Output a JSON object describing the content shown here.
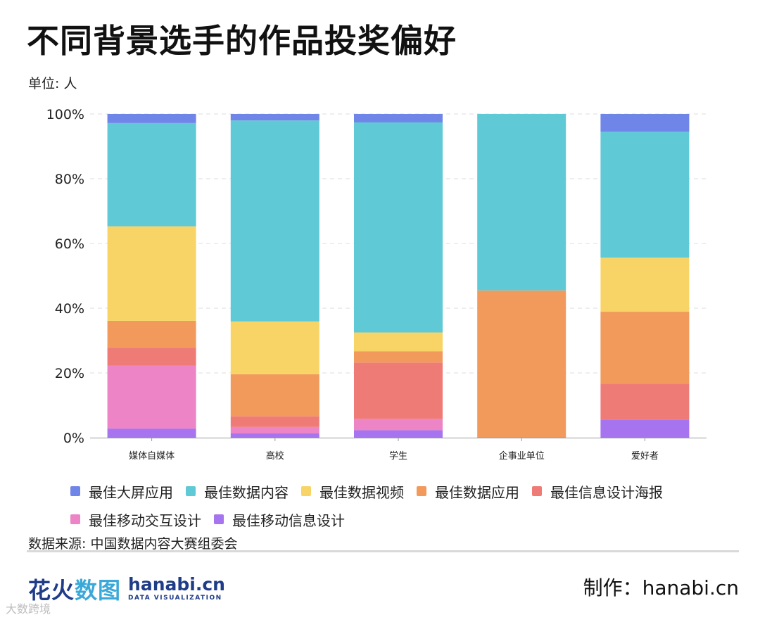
{
  "title": "不同背景选手的作品投奖偏好",
  "unit_label": "单位: 人",
  "source": "数据来源: 中国数据内容大赛组委会",
  "maker": "制作：hanabi.cn",
  "logo": {
    "cn_main": "花火",
    "cn_accent": "数图",
    "en_main": "hanabi.cn",
    "en_sub": "DATA VISUALIZATION"
  },
  "watermark_small": "大数跨境",
  "colors": {
    "最佳大屏应用": "#6f86e8",
    "最佳数据内容": "#5fc9d6",
    "最佳数据视频": "#f8d467",
    "最佳数据应用": "#f19a5c",
    "最佳信息设计海报": "#ef7b77",
    "最佳移动交互设计": "#ec84c6",
    "最佳移动信息设计": "#a774f0"
  },
  "chart_data": {
    "type": "bar",
    "stacked": true,
    "normalized": true,
    "categories": [
      "媒体自媒体",
      "高校",
      "学生",
      "企事业单位",
      "爱好者"
    ],
    "yticks": [
      "0%",
      "20%",
      "40%",
      "60%",
      "80%",
      "100%"
    ],
    "ylim": [
      0,
      100
    ],
    "grid": true,
    "legend_position": "bottom",
    "series": [
      {
        "name": "最佳移动信息设计",
        "values": [
          2.8,
          1.3,
          2.3,
          0,
          5.6
        ]
      },
      {
        "name": "最佳移动交互设计",
        "values": [
          19.4,
          2.0,
          3.5,
          0,
          0
        ]
      },
      {
        "name": "最佳信息设计海报",
        "values": [
          5.6,
          3.3,
          17.4,
          0,
          11.1
        ]
      },
      {
        "name": "最佳数据应用",
        "values": [
          8.3,
          13.0,
          3.5,
          45.5,
          22.2
        ]
      },
      {
        "name": "最佳数据视频",
        "values": [
          29.2,
          16.3,
          5.8,
          0,
          16.7
        ]
      },
      {
        "name": "最佳数据内容",
        "values": [
          31.9,
          62.1,
          64.9,
          54.5,
          38.9
        ]
      },
      {
        "name": "最佳大屏应用",
        "values": [
          2.8,
          2.0,
          2.6,
          0,
          5.5
        ]
      }
    ],
    "legend_order": [
      "最佳大屏应用",
      "最佳数据内容",
      "最佳数据视频",
      "最佳数据应用",
      "最佳信息设计海报",
      "最佳移动交互设计",
      "最佳移动信息设计"
    ]
  }
}
